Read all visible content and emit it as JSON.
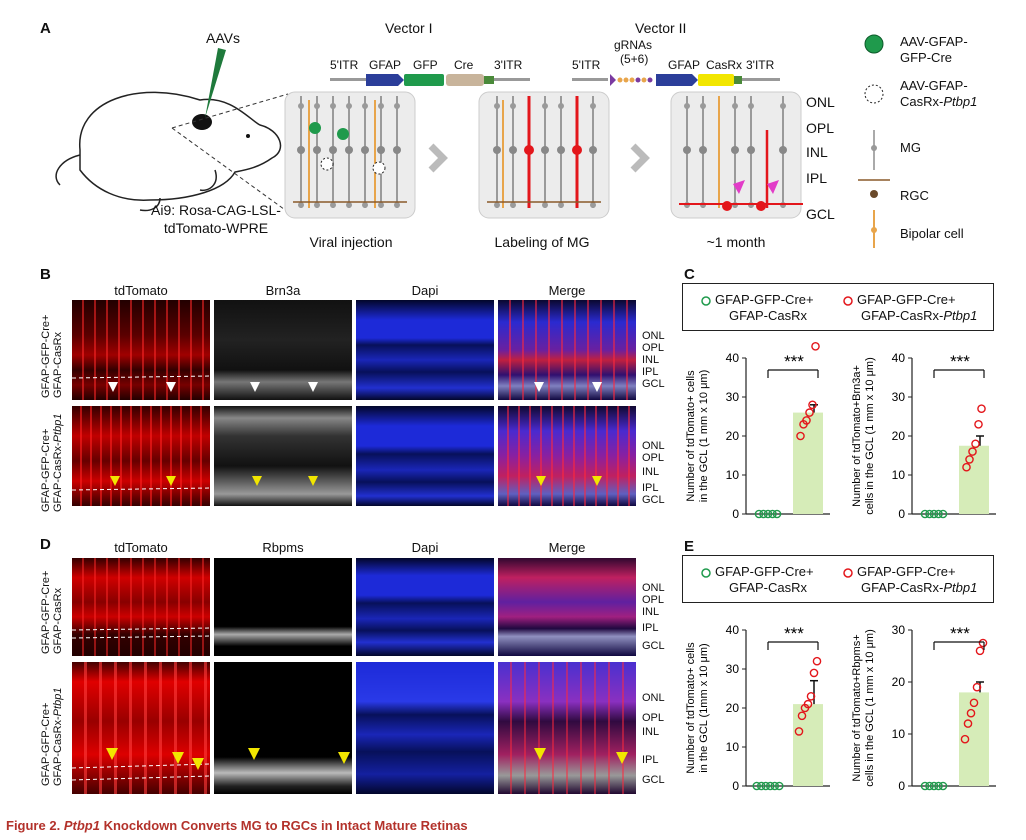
{
  "panelA": {
    "label": "A",
    "mouse_caption_line1": "Ai9: Rosa-CAG-LSL-",
    "mouse_caption_line2": "tdTomato-WPRE",
    "aavs": "AAVs",
    "vector1": {
      "title": "Vector I",
      "elements": [
        "5'ITR",
        "GFAP",
        "GFP",
        "Cre",
        "3'ITR"
      ]
    },
    "vector2": {
      "title": "Vector II",
      "grnas_line1": "gRNAs",
      "grnas_line2": "(5+6)",
      "elements": [
        "5'ITR",
        "GFAP",
        "CasRx",
        "3'ITR"
      ]
    },
    "steps": [
      "Viral injection",
      "Labeling of MG",
      "~1 month"
    ],
    "layers": [
      "ONL",
      "OPL",
      "INL",
      "IPL",
      "GCL"
    ],
    "legend": {
      "aav1_line1": "AAV-GFAP-",
      "aav1_line2": "GFP-Cre",
      "aav2_line1": "AAV-GFAP-",
      "aav2_line2": "CasRx-",
      "aav2_italic": "Ptbp1",
      "mg": "MG",
      "rgc": "RGC",
      "bipolar": "Bipolar cell"
    },
    "colors": {
      "gfap": "#2b3e9a",
      "gfp": "#1f9a4c",
      "cre": "#c8b49b",
      "casrx": "#f2e600",
      "red": "#e3161b",
      "orange": "#e8a54b",
      "magenta": "#e23cc8"
    }
  },
  "panelB": {
    "label": "B",
    "columns": [
      "tdTomato",
      "Brn3a",
      "Dapi",
      "Merge"
    ],
    "row1_label_line1": "GFAP-GFP-Cre+",
    "row1_label_line2": "GFAP-CasRx",
    "row2_label_line1": "GFAP-GFP-Cre+",
    "row2_label_line2": "GFAP-CasRx-",
    "row2_italic": "Ptbp1",
    "layers_row1": [
      "ONL",
      "OPL",
      "INL",
      "IPL",
      "GCL"
    ],
    "layers_row2": [
      "ONL",
      "OPL",
      "INL",
      "IPL",
      "GCL"
    ]
  },
  "panelD": {
    "label": "D",
    "columns": [
      "tdTomato",
      "Rbpms",
      "Dapi",
      "Merge"
    ],
    "row1_label_line1": "GFAP-GFP-Cre+",
    "row1_label_line2": "GFAP-CasRx",
    "row2_label_line1": "GFAP-GFP-Cre+",
    "row2_label_line2": "GFAP-CasRx-",
    "row2_italic": "Ptbp1",
    "layers_row1": [
      "ONL",
      "OPL",
      "INL",
      "IPL",
      "GCL"
    ],
    "layers_row2": [
      "ONL",
      "OPL",
      "INL",
      "IPL",
      "GCL"
    ]
  },
  "panelC": {
    "label": "C",
    "legend": {
      "ctrl_line1": "GFAP-GFP-Cre+",
      "ctrl_line2": "GFAP-CasRx",
      "kd_line1": "GFAP-GFP-Cre+",
      "kd_line2": "GFAP-CasRx-",
      "kd_italic": "Ptbp1"
    }
  },
  "panelE": {
    "label": "E",
    "legend": {
      "ctrl_line1": "GFAP-GFP-Cre+",
      "ctrl_line2": "GFAP-CasRx",
      "kd_line1": "GFAP-GFP-Cre+",
      "kd_line2": "GFAP-CasRx-",
      "kd_italic": "Ptbp1"
    }
  },
  "chart_data": [
    {
      "type": "bar",
      "panel": "C-left",
      "ylabel_line1": "Number of tdTomato+ cells",
      "ylabel_line2": "in the GCL (1 mm x 10 μm)",
      "ylim": [
        0,
        40
      ],
      "yticks": [
        "0",
        "10",
        "20",
        "30",
        "40"
      ],
      "categories": [
        "GFAP-CasRx",
        "GFAP-CasRx-Ptbp1"
      ],
      "values": [
        0,
        26
      ],
      "error": 2,
      "points": [
        [
          0,
          0,
          0,
          0,
          0
        ],
        [
          20,
          23,
          24,
          26,
          28,
          43
        ]
      ],
      "significance": "***"
    },
    {
      "type": "bar",
      "panel": "C-right",
      "ylabel_line1": "Number of tdTomato+Brn3a+",
      "ylabel_line2": "cells in the GCL (1 mm x 10 μm)",
      "ylim": [
        0,
        40
      ],
      "yticks": [
        "0",
        "10",
        "20",
        "30",
        "40"
      ],
      "categories": [
        "GFAP-CasRx",
        "GFAP-CasRx-Ptbp1"
      ],
      "values": [
        0,
        17.5
      ],
      "error": 2.5,
      "points": [
        [
          0,
          0,
          0,
          0,
          0
        ],
        [
          12,
          14,
          16,
          18,
          23,
          27
        ]
      ],
      "significance": "***"
    },
    {
      "type": "bar",
      "panel": "E-left",
      "ylabel_line1": "Number of tdTomato+ cells",
      "ylabel_line2": "in the GCL (1mm x 10 μm)",
      "ylim": [
        0,
        40
      ],
      "yticks": [
        "0",
        "10",
        "20",
        "30",
        "40"
      ],
      "categories": [
        "GFAP-CasRx",
        "GFAP-CasRx-Ptbp1"
      ],
      "values": [
        0,
        21
      ],
      "error": 6,
      "points": [
        [
          0,
          0,
          0,
          0,
          0,
          0
        ],
        [
          14,
          18,
          20,
          21,
          23,
          29,
          32
        ]
      ],
      "significance": "***"
    },
    {
      "type": "bar",
      "panel": "E-right",
      "ylabel_line1": "Number of tdTomato+Rbpms+",
      "ylabel_line2": "cells in the GCL (1 mm x 10 μm)",
      "ylim": [
        0,
        30
      ],
      "yticks": [
        "0",
        "10",
        "20",
        "30"
      ],
      "categories": [
        "GFAP-CasRx",
        "GFAP-CasRx-Ptbp1"
      ],
      "values": [
        0,
        18
      ],
      "error": 2,
      "points": [
        [
          0,
          0,
          0,
          0,
          0
        ],
        [
          9,
          12,
          14,
          16,
          19,
          26,
          27.5
        ]
      ],
      "significance": "***"
    }
  ],
  "caption": {
    "prefix": "Figure 2.",
    "italic": "Ptbp1",
    "rest": "Knockdown Converts MG to RGCs in Intact Mature Retinas"
  }
}
